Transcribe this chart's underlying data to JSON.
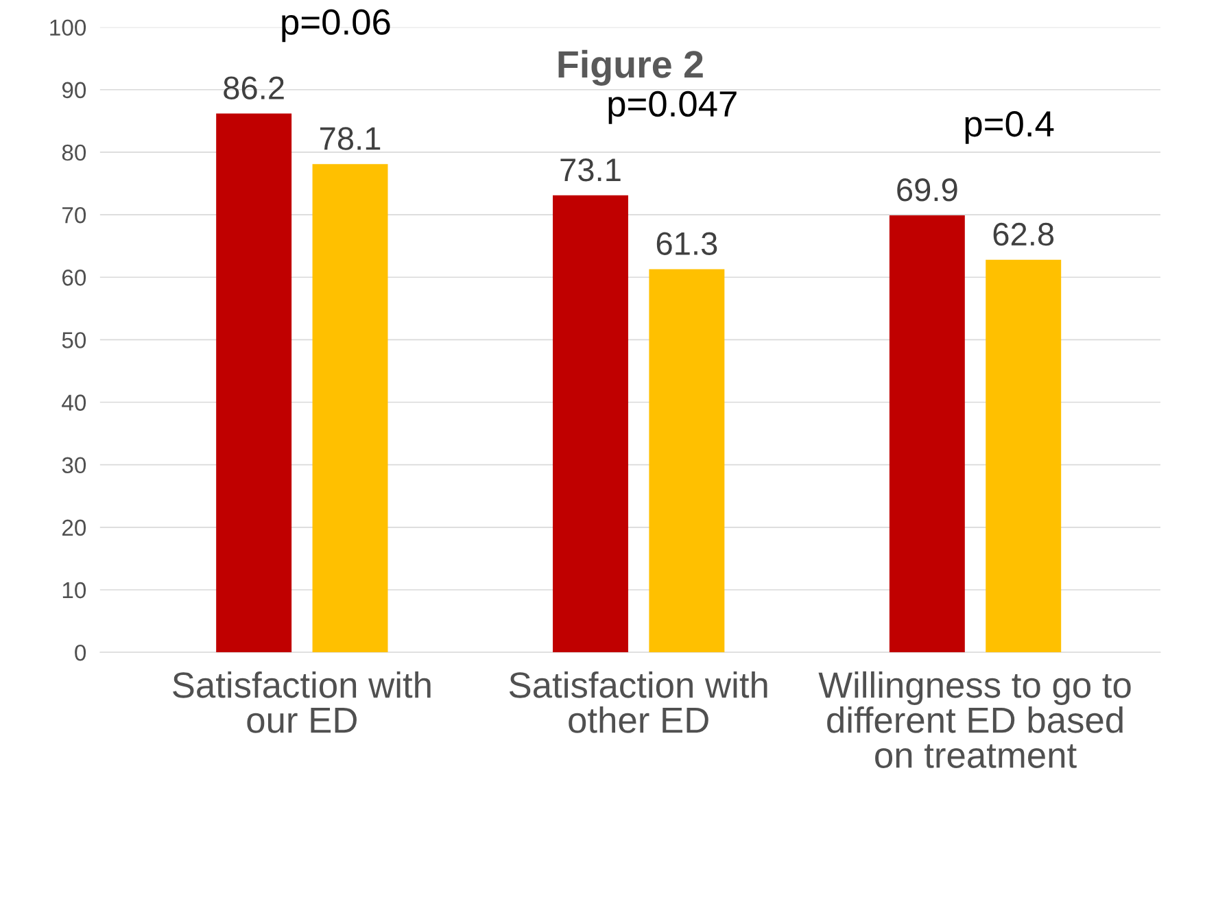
{
  "chart_data": {
    "type": "bar",
    "title": "Figure 2",
    "categories": [
      "Satisfaction with our ED",
      "Satisfaction with other ED",
      "Willingness to go to different ED based on treatment"
    ],
    "series": [
      {
        "color": "#c00000",
        "values": [
          86.2,
          73.1,
          69.9
        ]
      },
      {
        "color": "#ffc000",
        "values": [
          78.1,
          61.3,
          62.8
        ]
      }
    ],
    "ylim": [
      0,
      100
    ],
    "yticks": [
      0,
      10,
      20,
      30,
      40,
      50,
      60,
      70,
      80,
      90,
      100
    ],
    "grid": "y",
    "data_labels": true,
    "legend": false,
    "annotations": [
      "p=0.06",
      "p=0.047",
      "p=0.4"
    ]
  }
}
